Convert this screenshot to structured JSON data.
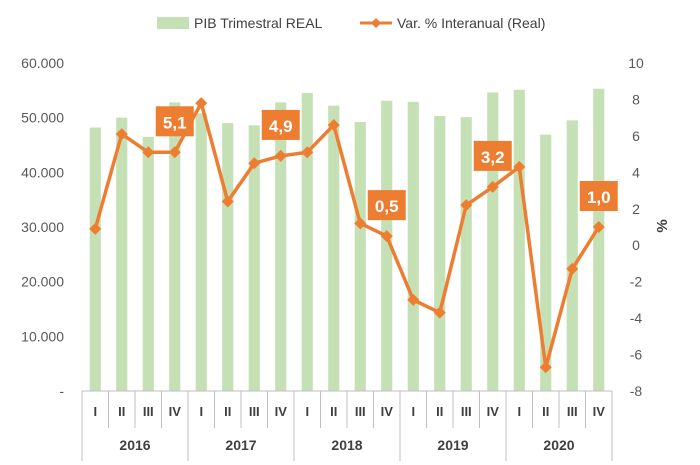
{
  "chart_data": {
    "type": "bar+line",
    "title": "",
    "legend_position": "top",
    "categories": [
      "I",
      "II",
      "III",
      "IV",
      "I",
      "II",
      "III",
      "IV",
      "I",
      "II",
      "III",
      "IV",
      "I",
      "II",
      "III",
      "IV",
      "I",
      "II",
      "III",
      "IV"
    ],
    "years": [
      "2016",
      "2017",
      "2018",
      "2019",
      "2020"
    ],
    "series": [
      {
        "name": "PIB Trimestral REAL",
        "kind": "bar",
        "axis": "left",
        "color": "#c5e0b4",
        "values": [
          48200,
          50000,
          46500,
          52800,
          50800,
          49000,
          48600,
          52800,
          54500,
          52200,
          49200,
          53100,
          52900,
          50300,
          50100,
          54600,
          55100,
          46900,
          49500,
          55300
        ]
      },
      {
        "name": "Var. % Interanual (Real)",
        "kind": "line",
        "axis": "right",
        "color": "#ed7d31",
        "values": [
          0.9,
          6.1,
          5.1,
          5.1,
          7.8,
          2.4,
          4.5,
          4.9,
          5.1,
          6.6,
          1.2,
          0.5,
          -3.0,
          -3.7,
          2.2,
          3.2,
          4.3,
          -6.7,
          -1.3,
          1.0
        ]
      }
    ],
    "y_left": {
      "min": 0,
      "max": 60000,
      "ticks": [
        "-",
        "10.000",
        "20.000",
        "30.000",
        "40.000",
        "50.000",
        "60.000"
      ]
    },
    "y_right": {
      "min": -8,
      "max": 10,
      "label": "%",
      "ticks": [
        "-8",
        "-6",
        "-4",
        "-2",
        "0",
        "2",
        "4",
        "6",
        "8",
        "10"
      ]
    },
    "annotations": [
      {
        "index": 3,
        "text": "5,1"
      },
      {
        "index": 7,
        "text": "4,9"
      },
      {
        "index": 11,
        "text": "0,5"
      },
      {
        "index": 15,
        "text": "3,2"
      },
      {
        "index": 19,
        "text": "1,0"
      }
    ]
  }
}
